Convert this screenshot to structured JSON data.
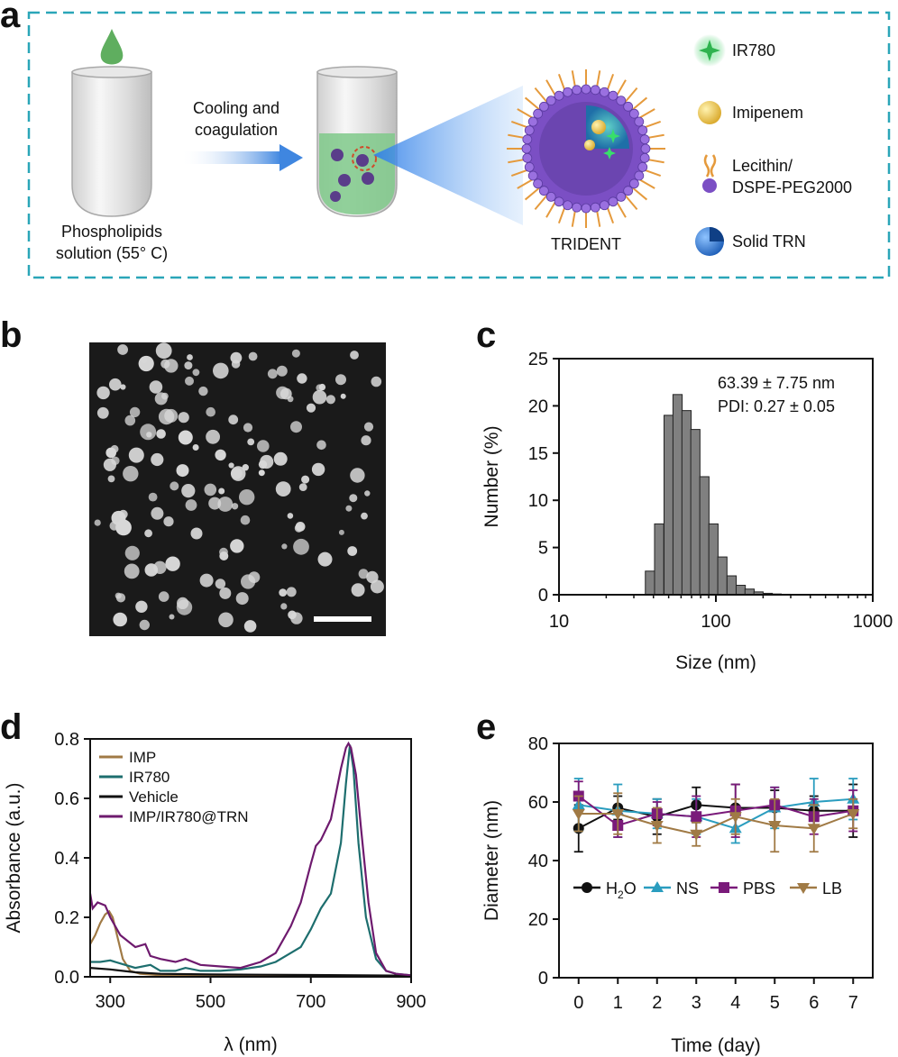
{
  "panel_labels": {
    "a": "a",
    "b": "b",
    "c": "c",
    "d": "d",
    "e": "e"
  },
  "schematic": {
    "arrow_label_line1": "Cooling and",
    "arrow_label_line2": "coagulation",
    "tube_label_line1": "Phospholipids",
    "tube_label_line2": "solution (55° C)",
    "nanoparticle_label": "TRIDENT",
    "legend": [
      {
        "icon": "ir780-icon",
        "label": "IR780"
      },
      {
        "icon": "imipenem-icon",
        "label": "Imipenem"
      },
      {
        "icon": "lipid-icon",
        "label_line1": "Lecithin/",
        "label_line2": "DSPE-PEG2000"
      },
      {
        "icon": "solid-trn-icon",
        "label": "Solid TRN"
      }
    ],
    "colors": {
      "border": "#2aa6b8",
      "drop": "#5fae5f",
      "liquid": "#7fc98a",
      "shell": "#7b4fc4",
      "tail": "#e59a3c",
      "imipenem": "#f2d35b",
      "ir780": "#37c45e",
      "trn": "#1f6fc4"
    }
  },
  "chart_data": [
    {
      "panel": "c",
      "type": "bar",
      "xscale": "log",
      "xlabel": "Size (nm)",
      "ylabel": "Number (%)",
      "xlim": [
        10,
        1000
      ],
      "ylim": [
        0,
        25
      ],
      "xticks": [
        10,
        100,
        1000
      ],
      "xtick_labels": [
        "10",
        "100",
        "1000"
      ],
      "yticks": [
        0,
        5,
        10,
        15,
        20,
        25
      ],
      "ytick_labels": [
        "0",
        "5",
        "10",
        "15",
        "20",
        "25"
      ],
      "annotation_line1": "63.39 ± 7.75 nm",
      "annotation_line2": "PDI: 0.27 ± 0.05",
      "bin_centers": [
        38,
        43.5,
        50,
        57,
        65,
        74,
        84.5,
        96.5,
        110,
        126,
        144,
        164,
        187,
        214,
        244,
        279
      ],
      "values": [
        2.5,
        7.5,
        19,
        21.2,
        19.5,
        17.5,
        12.5,
        7.5,
        4,
        2,
        1,
        0.6,
        0.3,
        0.15,
        0.08,
        0.05
      ],
      "bar_color": "#808080"
    },
    {
      "panel": "d",
      "type": "line",
      "xlabel": "λ (nm)",
      "ylabel": "Absorbance (a.u.)",
      "xlim": [
        260,
        900
      ],
      "ylim": [
        0,
        0.8
      ],
      "xticks": [
        300,
        500,
        700,
        900
      ],
      "xtick_labels": [
        "300",
        "500",
        "700",
        "900"
      ],
      "yticks": [
        0,
        0.2,
        0.4,
        0.6,
        0.8
      ],
      "ytick_labels": [
        "0.0",
        "0.2",
        "0.4",
        "0.6",
        "0.8"
      ],
      "series": [
        {
          "name": "IMP",
          "color": "#a07a45",
          "x": [
            260,
            270,
            280,
            290,
            298,
            305,
            315,
            325,
            340,
            360,
            400,
            500,
            600,
            700,
            800,
            900
          ],
          "y": [
            0.11,
            0.14,
            0.18,
            0.21,
            0.22,
            0.2,
            0.13,
            0.06,
            0.02,
            0.01,
            0.005,
            0.003,
            0.002,
            0.002,
            0.002,
            0.002
          ]
        },
        {
          "name": "IR780",
          "color": "#1d6e6e",
          "x": [
            260,
            280,
            300,
            320,
            350,
            380,
            400,
            430,
            450,
            480,
            520,
            560,
            600,
            630,
            660,
            680,
            700,
            720,
            740,
            760,
            770,
            778,
            785,
            795,
            810,
            830,
            850,
            870,
            900
          ],
          "y": [
            0.05,
            0.05,
            0.055,
            0.045,
            0.03,
            0.04,
            0.02,
            0.02,
            0.03,
            0.02,
            0.02,
            0.025,
            0.035,
            0.05,
            0.08,
            0.1,
            0.16,
            0.23,
            0.28,
            0.45,
            0.65,
            0.78,
            0.7,
            0.45,
            0.2,
            0.06,
            0.02,
            0.01,
            0.005
          ]
        },
        {
          "name": "Vehicle",
          "color": "#111111",
          "x": [
            260,
            300,
            350,
            400,
            500,
            600,
            700,
            800,
            900
          ],
          "y": [
            0.03,
            0.025,
            0.015,
            0.01,
            0.008,
            0.007,
            0.006,
            0.005,
            0.004
          ]
        },
        {
          "name": "IMP/IR780@TRN",
          "color": "#6e1a6e",
          "x": [
            260,
            265,
            275,
            290,
            300,
            320,
            350,
            370,
            380,
            400,
            430,
            450,
            480,
            520,
            560,
            600,
            630,
            660,
            680,
            700,
            710,
            720,
            740,
            760,
            770,
            775,
            780,
            790,
            800,
            815,
            830,
            850,
            870,
            900
          ],
          "y": [
            0.28,
            0.23,
            0.25,
            0.24,
            0.2,
            0.14,
            0.1,
            0.11,
            0.07,
            0.06,
            0.05,
            0.06,
            0.04,
            0.035,
            0.03,
            0.05,
            0.08,
            0.17,
            0.25,
            0.38,
            0.44,
            0.46,
            0.53,
            0.7,
            0.77,
            0.785,
            0.77,
            0.68,
            0.5,
            0.25,
            0.08,
            0.02,
            0.01,
            0.005
          ]
        }
      ]
    },
    {
      "panel": "e",
      "type": "line",
      "xlabel": "Time (day)",
      "ylabel": "Diameter (nm)",
      "xlim": [
        -0.5,
        7.5
      ],
      "ylim": [
        0,
        80
      ],
      "xticks": [
        0,
        1,
        2,
        3,
        4,
        5,
        6,
        7
      ],
      "xtick_labels": [
        "0",
        "1",
        "2",
        "3",
        "4",
        "5",
        "6",
        "7"
      ],
      "yticks": [
        0,
        20,
        40,
        60,
        80
      ],
      "ytick_labels": [
        "0",
        "20",
        "40",
        "60",
        "80"
      ],
      "x": [
        0,
        1,
        2,
        3,
        4,
        5,
        6,
        7
      ],
      "series": [
        {
          "name": "H₂O",
          "legend_main": "H",
          "legend_sub": "2",
          "legend_tail": "O",
          "color": "#111111",
          "marker": "circle",
          "y": [
            51,
            58,
            55,
            59,
            58,
            58,
            57,
            57
          ],
          "err": [
            8,
            4,
            6,
            6,
            8,
            6,
            5,
            9
          ]
        },
        {
          "name": "NS",
          "color": "#2a9dbf",
          "marker": "triangle-up",
          "y": [
            59,
            57,
            56,
            55,
            51,
            58,
            60,
            61
          ],
          "err": [
            9,
            9,
            5,
            6,
            5,
            7,
            8,
            7
          ]
        },
        {
          "name": "PBS",
          "color": "#7a1a7a",
          "marker": "square",
          "y": [
            62,
            52,
            56,
            55,
            57,
            59,
            55,
            57
          ],
          "err": [
            5,
            4,
            4,
            7,
            9,
            6,
            6,
            7
          ]
        },
        {
          "name": "LB",
          "color": "#a07a45",
          "marker": "triangle-down",
          "y": [
            56,
            56,
            52,
            49,
            55,
            52,
            51,
            56
          ],
          "err": [
            6,
            7,
            6,
            4,
            6,
            9,
            8,
            5
          ]
        }
      ]
    }
  ]
}
